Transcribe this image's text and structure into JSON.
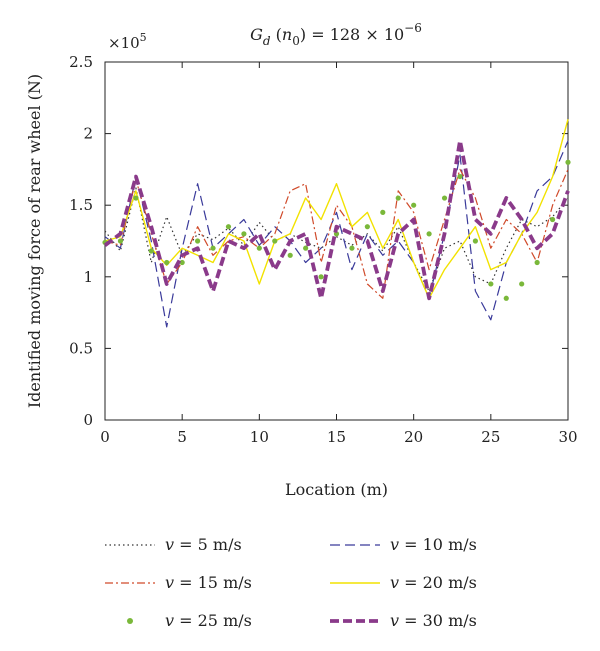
{
  "chart_data": {
    "type": "line",
    "title": "G_d (n_0) = 128 × 10^−6",
    "title_parts": {
      "base": "G",
      "sub": "d",
      "arg_open": " (",
      "arg": "n",
      "arg_sub": "0",
      "rest": ") = 128 × 10",
      "sup": "−6"
    },
    "xlabel": "Location (m)",
    "ylabel": "Identified moving force of rear wheel (N)",
    "y_multiplier": "×10^5",
    "y_multiplier_parts": {
      "base": "×10",
      "sup": "5"
    },
    "xlim": [
      0,
      30
    ],
    "ylim": [
      0,
      2.5
    ],
    "x_ticks": [
      0,
      5,
      10,
      15,
      20,
      25,
      30
    ],
    "x_tick_labels": [
      "0",
      "5",
      "10",
      "15",
      "20",
      "25",
      "30"
    ],
    "y_ticks": [
      0,
      0.5,
      1,
      1.5,
      2,
      2.5
    ],
    "y_tick_labels": [
      "0",
      "0.5",
      "1",
      "1.5",
      "2",
      "2.5"
    ],
    "x": [
      0,
      1,
      2,
      3,
      4,
      5,
      6,
      7,
      8,
      9,
      10,
      11,
      12,
      13,
      14,
      15,
      16,
      17,
      18,
      19,
      20,
      21,
      22,
      23,
      24,
      25,
      26,
      27,
      28,
      29,
      30
    ],
    "series": [
      {
        "name": "v = 5 m/s",
        "legend_var": "v",
        "legend_rest": " = 5 m/s",
        "color": "#333333",
        "style": "dotted",
        "values": [
          1.32,
          1.18,
          1.62,
          1.1,
          1.42,
          1.15,
          1.3,
          1.26,
          1.34,
          1.22,
          1.38,
          1.25,
          1.3,
          1.24,
          1.2,
          1.28,
          1.22,
          1.3,
          1.18,
          1.35,
          1.1,
          0.9,
          1.2,
          1.25,
          1.0,
          0.95,
          1.2,
          1.4,
          1.35,
          1.42,
          1.55
        ]
      },
      {
        "name": "v = 10 m/s",
        "legend_var": "v",
        "legend_rest": " = 10 m/s",
        "color": "#3a3a9a",
        "style": "dashed",
        "values": [
          1.28,
          1.2,
          1.7,
          1.25,
          0.65,
          1.2,
          1.65,
          1.2,
          1.3,
          1.4,
          1.22,
          1.35,
          1.25,
          1.1,
          1.2,
          1.45,
          1.05,
          1.3,
          1.15,
          1.25,
          1.1,
          0.85,
          1.3,
          1.85,
          0.9,
          0.7,
          1.1,
          1.3,
          1.6,
          1.7,
          1.95
        ]
      },
      {
        "name": "v = 15 m/s",
        "legend_var": "v",
        "legend_rest": " = 15 m/s",
        "color": "#d04a2a",
        "style": "dashdot",
        "values": [
          1.25,
          1.22,
          1.68,
          1.3,
          0.95,
          1.1,
          1.35,
          1.15,
          1.25,
          1.28,
          1.2,
          1.3,
          1.6,
          1.65,
          1.1,
          1.5,
          1.35,
          0.95,
          0.85,
          1.6,
          1.45,
          1.05,
          1.4,
          1.75,
          1.55,
          1.2,
          1.4,
          1.3,
          1.1,
          1.5,
          1.75
        ]
      },
      {
        "name": "v = 20 m/s",
        "legend_var": "v",
        "legend_rest": " = 20 m/s",
        "color": "#f2e200",
        "style": "solid",
        "values": [
          1.25,
          1.28,
          1.6,
          1.2,
          1.08,
          1.2,
          1.15,
          1.1,
          1.3,
          1.25,
          0.95,
          1.25,
          1.3,
          1.55,
          1.4,
          1.65,
          1.35,
          1.45,
          1.2,
          1.4,
          1.1,
          0.85,
          1.05,
          1.2,
          1.35,
          1.05,
          1.1,
          1.3,
          1.45,
          1.7,
          2.1
        ]
      },
      {
        "name": "v = 25 m/s",
        "legend_var": "v",
        "legend_rest": " = 25 m/s",
        "color": "#7ab83a",
        "style": "points",
        "values": [
          1.24,
          1.25,
          1.55,
          1.18,
          1.1,
          1.1,
          1.25,
          1.2,
          1.35,
          1.3,
          1.2,
          1.25,
          1.15,
          1.2,
          1.0,
          1.3,
          1.2,
          1.35,
          1.45,
          1.55,
          1.5,
          1.3,
          1.55,
          1.7,
          1.25,
          0.95,
          0.85,
          0.95,
          1.1,
          1.4,
          1.8
        ]
      },
      {
        "name": "v = 30 m/s",
        "legend_var": "v",
        "legend_rest": " = 30 m/s",
        "color": "#8a3a8a",
        "style": "thickdashed",
        "values": [
          1.22,
          1.3,
          1.7,
          1.35,
          0.95,
          1.15,
          1.2,
          0.9,
          1.25,
          1.2,
          1.3,
          1.05,
          1.25,
          1.3,
          0.85,
          1.35,
          1.3,
          1.25,
          0.9,
          1.3,
          1.4,
          0.85,
          1.3,
          1.95,
          1.4,
          1.3,
          1.55,
          1.4,
          1.2,
          1.3,
          1.6
        ]
      }
    ],
    "legend_location": "bottom"
  }
}
